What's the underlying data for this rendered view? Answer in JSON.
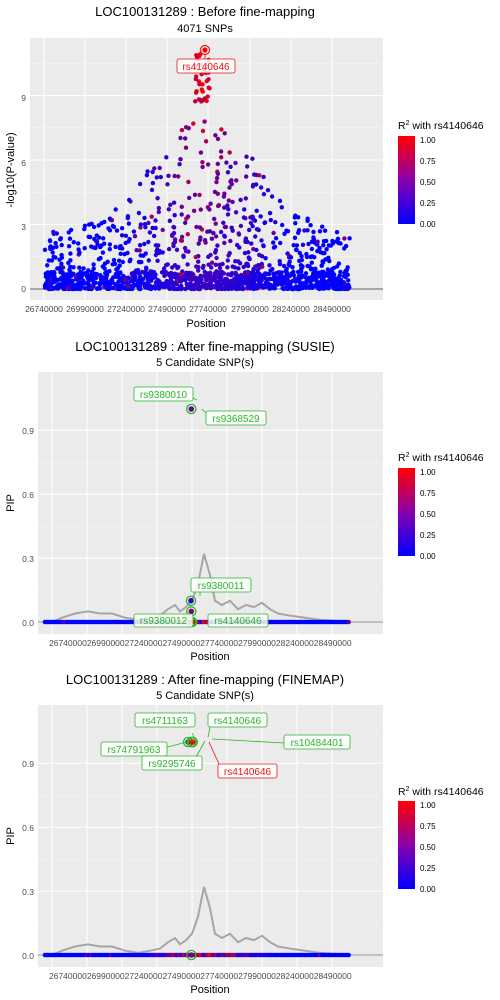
{
  "colors": {
    "panel_bg": "#ebebeb",
    "grid": "#ffffff",
    "low": "#0000ff",
    "high": "#ff0000",
    "label_green": "#27b827",
    "label_red": "#e8141a",
    "pip_line": "#a6a6a6"
  },
  "chart_data": [
    {
      "id": "before",
      "type": "scatter",
      "title": "LOC100131289 : Before fine-mapping",
      "subtitle": "4071 SNPs",
      "xlabel": "Position",
      "ylabel": "-log10(P-value)",
      "xlim": [
        27560000,
        27940000
      ],
      "ylim": [
        -0.6,
        11.8
      ],
      "x_ticks": [
        "26740000",
        "26990000",
        "27240000",
        "27490000",
        "27740000",
        "27990000",
        "28240000",
        "28490000"
      ],
      "y_ticks": [
        0,
        3,
        6,
        9
      ],
      "legend_title_prefix": "R",
      "legend_title_sup": "2",
      "legend_title_suffix": " with rs4140646",
      "legend_ticks": [
        "1.00",
        "0.75",
        "0.50",
        "0.25",
        "0.00"
      ],
      "lead_snp": {
        "x": 27740000,
        "y": 11.2,
        "r2": 1.0
      },
      "labels": [
        {
          "text": "rs4140646",
          "color": "red"
        }
      ]
    },
    {
      "id": "susie",
      "type": "scatter",
      "title": "LOC100131289 : After fine-mapping (SUSIE)",
      "subtitle": "5 Candidate SNP(s)",
      "xlabel": "Position",
      "ylabel": "PIP",
      "y_ticks": [
        "0.0",
        "0.3",
        "0.6",
        "0.9"
      ],
      "legend_title_prefix": "R",
      "legend_title_sup": "2",
      "legend_title_suffix": " with rs4140646",
      "legend_ticks": [
        "1.00",
        "0.75",
        "0.50",
        "0.25",
        "0.00"
      ],
      "x_tick_text": "2674000026990000272400002749000027740000279900002824000028490000",
      "candidates": [
        {
          "x": 27735000,
          "y": 1.0,
          "r2": 0.4
        },
        {
          "x": 27733000,
          "y": 0.1,
          "r2": 0.2
        },
        {
          "x": 27735000,
          "y": 0.05,
          "r2": 0.5
        },
        {
          "x": 27733000,
          "y": 0.0,
          "r2": 0.3
        },
        {
          "x": 27741000,
          "y": 0.0,
          "r2": 1.0
        }
      ],
      "labels": [
        {
          "text": "rs9380010",
          "color": "green"
        },
        {
          "text": "rs9368529",
          "color": "green"
        },
        {
          "text": "rs9380011",
          "color": "green"
        },
        {
          "text": "rs9380012",
          "color": "green"
        },
        {
          "text": "rs4140646",
          "color": "green"
        }
      ]
    },
    {
      "id": "finemap",
      "type": "scatter",
      "title": "LOC100131289 : After fine-mapping (FINEMAP)",
      "subtitle": "5 Candidate SNP(s)",
      "xlabel": "Position",
      "ylabel": "PIP",
      "y_ticks": [
        "0.0",
        "0.3",
        "0.6",
        "0.9"
      ],
      "legend_title_prefix": "R",
      "legend_title_sup": "2",
      "legend_title_suffix": " with rs4140646",
      "legend_ticks": [
        "1.00",
        "0.75",
        "0.50",
        "0.25",
        "0.00"
      ],
      "x_tick_text": "2674000026990000272400002749000027740000279900002824000028490000",
      "candidates": [
        {
          "x": 27712000,
          "y": 1.0,
          "r2": 0.05
        },
        {
          "x": 27738000,
          "y": 1.0,
          "r2": 1.0
        },
        {
          "x": 27741000,
          "y": 1.0,
          "r2": 1.0
        },
        {
          "x": 27743000,
          "y": 1.0,
          "r2": 1.0
        },
        {
          "x": 27745000,
          "y": 1.0,
          "r2": 1.0
        },
        {
          "x": 27735000,
          "y": 0.0,
          "r2": 0.5
        }
      ],
      "labels": [
        {
          "text": "rs4711163",
          "color": "green"
        },
        {
          "text": "rs4140646",
          "color": "green"
        },
        {
          "text": "rs74791963",
          "color": "green"
        },
        {
          "text": "rs10484401",
          "color": "green"
        },
        {
          "text": "rs9295746",
          "color": "green"
        },
        {
          "text": "rs4140646",
          "color": "red"
        }
      ]
    }
  ]
}
